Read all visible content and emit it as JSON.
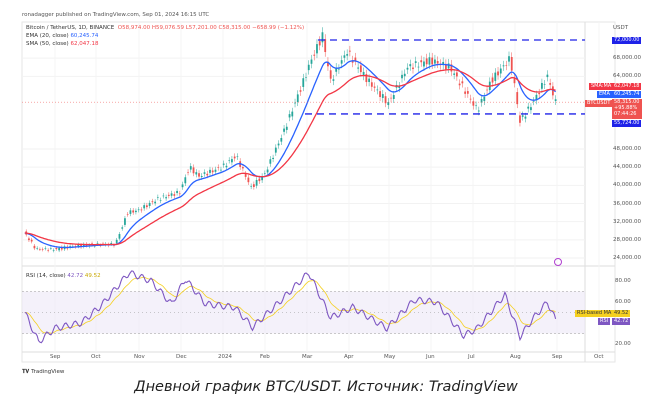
{
  "header": {
    "publisher": "ronadagger published on TradingView.com, Sep 01, 2024 16:15 UTC"
  },
  "legend": {
    "symbol": "Bitcoin / TetherUS, 1D, BINANCE",
    "open": "O58,974.00",
    "high": "H59,076.59",
    "low": "L57,201.00",
    "close": "C58,315.00",
    "change": "−658.99 (−1.12%)",
    "ema_label": "EMA (20, close)",
    "ema_value": "60,245.74",
    "sma_label": "SMA (50, close)",
    "sma_value": "62,047.18",
    "rsi_label": "RSI (14, close)",
    "rsi_value": "42.72",
    "rsi_ma_value": "49.52"
  },
  "price_axis": {
    "currency": "USDT",
    "ticks": [
      "68,000.00",
      "64,000.00",
      "48,000.00",
      "44,000.00",
      "40,000.00",
      "36,000.00",
      "32,000.00",
      "28,000.00",
      "24,000.00"
    ]
  },
  "tags": {
    "resistance": "72,000.00",
    "sma_name": "SMA:MA",
    "sma": "62,047.18",
    "ema_name": "EMA",
    "ema": "60,245.74",
    "sym_name": "BTCUSDT",
    "price": "58,315.00",
    "pct": "+95.88%",
    "countdown": "07:44:26",
    "support": "55,724.00",
    "rsi_ma_name": "RSI-based MA",
    "rsi_ma": "49.52",
    "rsi_name": "RSI",
    "rsi": "42.72"
  },
  "rsi_axis": {
    "ticks": [
      "80.00",
      "60.00",
      "20.00"
    ]
  },
  "time_axis": {
    "ticks": [
      "Sep",
      "Oct",
      "Nov",
      "Dec",
      "2024",
      "Feb",
      "Mar",
      "Apr",
      "May",
      "Jun",
      "Jul",
      "Aug",
      "Sep",
      "Oct"
    ]
  },
  "branding": "TradingView",
  "caption": "Дневной график BTC/USDT. Источник: TradingView",
  "colors": {
    "ema": "#2962ff",
    "sma": "#f23645",
    "rsi": "#7e57c2",
    "rsi_ma": "#f5d020",
    "levels": "#1e22e8",
    "up": "#26a69a",
    "down": "#ef5350"
  },
  "chart_data": {
    "type": "line",
    "title": "Bitcoin / TetherUS, 1D, BINANCE",
    "ylim": [
      22000,
      74000
    ],
    "horizontal_levels": [
      72000,
      55724
    ],
    "series": [
      {
        "name": "BTCUSDT",
        "x": [
          "2023-08-10",
          "2023-08-18",
          "2023-09-01",
          "2023-09-15",
          "2023-10-01",
          "2023-10-15",
          "2023-10-24",
          "2023-11-01",
          "2023-11-15",
          "2023-12-01",
          "2023-12-08",
          "2023-12-15",
          "2024-01-01",
          "2024-01-11",
          "2024-01-22",
          "2024-02-01",
          "2024-02-15",
          "2024-02-28",
          "2024-03-05",
          "2024-03-14",
          "2024-03-20",
          "2024-04-01",
          "2024-04-15",
          "2024-05-01",
          "2024-05-15",
          "2024-06-01",
          "2024-06-15",
          "2024-07-05",
          "2024-07-15",
          "2024-07-29",
          "2024-08-05",
          "2024-08-15",
          "2024-08-25",
          "2024-08-31"
        ],
        "values": [
          29500,
          26000,
          25900,
          26600,
          27000,
          27000,
          34000,
          34500,
          37000,
          38500,
          44000,
          42000,
          44000,
          46500,
          39500,
          42500,
          52000,
          62000,
          67000,
          73000,
          63000,
          69500,
          63500,
          58000,
          66000,
          67500,
          66000,
          56500,
          63000,
          68000,
          54000,
          58500,
          64000,
          58315
        ]
      },
      {
        "name": "RSI (14, close)",
        "x": [
          "2023-08-10",
          "2023-08-20",
          "2023-09-01",
          "2023-09-20",
          "2023-10-05",
          "2023-10-25",
          "2023-11-10",
          "2023-11-25",
          "2023-12-05",
          "2023-12-20",
          "2024-01-10",
          "2024-01-23",
          "2024-02-10",
          "2024-03-04",
          "2024-03-20",
          "2024-04-05",
          "2024-04-30",
          "2024-05-20",
          "2024-06-05",
          "2024-06-25",
          "2024-07-05",
          "2024-07-25",
          "2024-08-05",
          "2024-08-15",
          "2024-08-25",
          "2024-08-31"
        ],
        "values": [
          50,
          22,
          35,
          40,
          57,
          88,
          80,
          58,
          82,
          58,
          55,
          36,
          58,
          88,
          45,
          55,
          35,
          62,
          60,
          28,
          35,
          67,
          27,
          45,
          60,
          42.72
        ]
      }
    ]
  }
}
